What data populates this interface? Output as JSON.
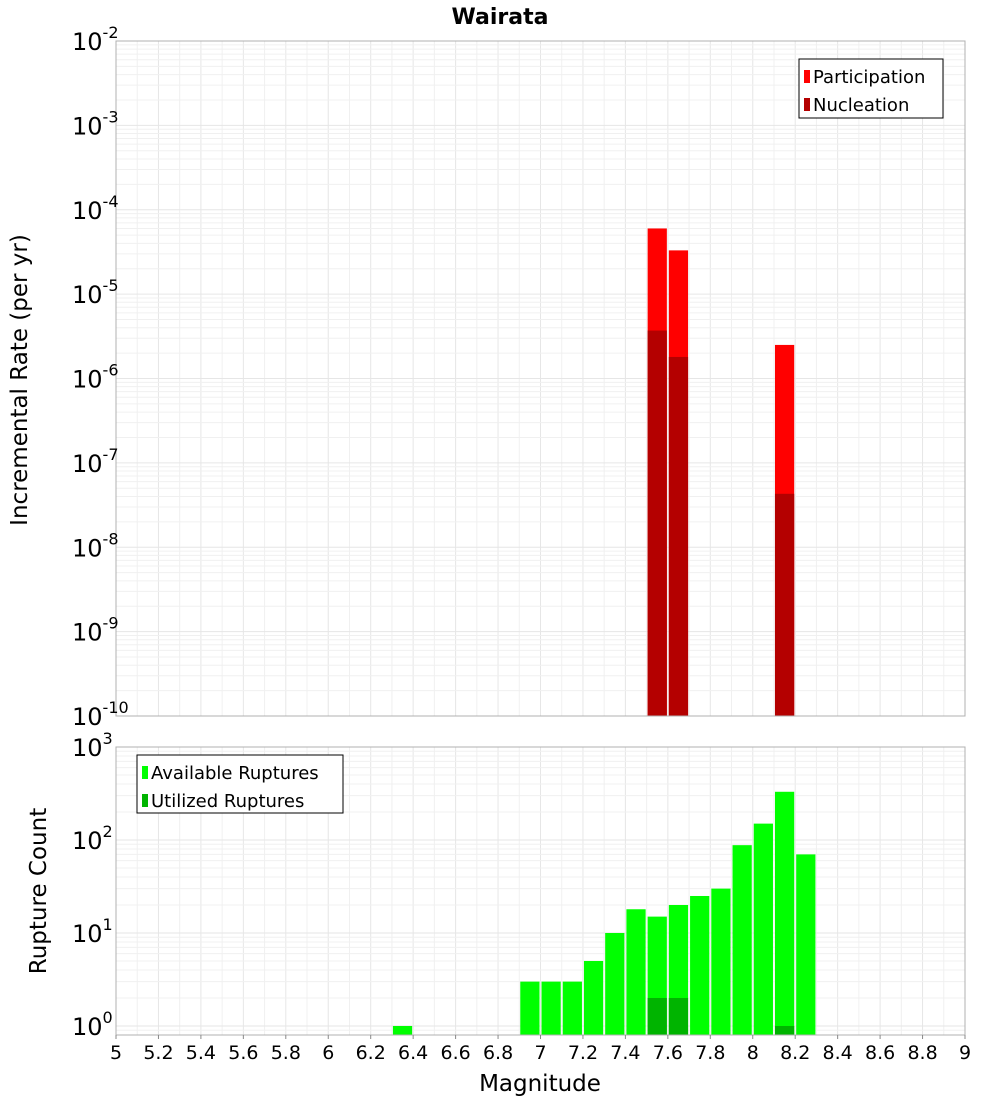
{
  "chart_data": [
    {
      "type": "bar",
      "title": "Wairata",
      "xlabel": "Magnitude",
      "ylabel": "Incremental Rate (per yr)",
      "yscale": "log",
      "xlim": [
        5,
        9
      ],
      "ylim": [
        1e-10,
        0.01
      ],
      "bin_width": 0.1,
      "legend_position": "top-right",
      "colors": {
        "Participation": "#ff0000",
        "Nucleation": "#b40000"
      },
      "series": [
        {
          "name": "Participation",
          "x": [
            7.55,
            7.65,
            8.15
          ],
          "values": [
            6e-05,
            3.3e-05,
            2.5e-06
          ]
        },
        {
          "name": "Nucleation",
          "x": [
            7.55,
            7.65,
            8.15
          ],
          "values": [
            3.7e-06,
            1.8e-06,
            4.3e-08
          ]
        }
      ],
      "y_tick_labels": [
        {
          "base": "10",
          "exp": "-10"
        },
        {
          "base": "10",
          "exp": "-9"
        },
        {
          "base": "10",
          "exp": "-8"
        },
        {
          "base": "10",
          "exp": "-7"
        },
        {
          "base": "10",
          "exp": "-6"
        },
        {
          "base": "10",
          "exp": "-5"
        },
        {
          "base": "10",
          "exp": "-4"
        },
        {
          "base": "10",
          "exp": "-3"
        },
        {
          "base": "10",
          "exp": "-2"
        }
      ]
    },
    {
      "type": "bar",
      "xlabel": "Magnitude",
      "ylabel": "Rupture Count",
      "yscale": "log",
      "xlim": [
        5,
        9
      ],
      "ylim": [
        0.8,
        1000
      ],
      "bin_width": 0.1,
      "legend_position": "top-left",
      "colors": {
        "Available Ruptures": "#00ff00",
        "Utilized Ruptures": "#00b400"
      },
      "series": [
        {
          "name": "Available Ruptures",
          "x": [
            6.35,
            6.95,
            7.05,
            7.15,
            7.25,
            7.35,
            7.45,
            7.55,
            7.65,
            7.75,
            7.85,
            7.95,
            8.05,
            8.15,
            8.25
          ],
          "values": [
            1,
            3,
            3,
            3,
            5,
            10,
            18,
            15,
            20,
            25,
            30,
            88,
            150,
            330,
            70
          ]
        },
        {
          "name": "Utilized Ruptures",
          "x": [
            7.55,
            7.65,
            8.15
          ],
          "values": [
            2,
            2,
            1
          ]
        }
      ],
      "y_tick_labels": [
        {
          "base": "10",
          "exp": "0"
        },
        {
          "base": "10",
          "exp": "1"
        },
        {
          "base": "10",
          "exp": "2"
        },
        {
          "base": "10",
          "exp": "3"
        }
      ]
    }
  ],
  "x_tick_labels": [
    "5",
    "5.2",
    "5.4",
    "5.6",
    "5.8",
    "6",
    "6.2",
    "6.4",
    "6.6",
    "6.8",
    "7",
    "7.2",
    "7.4",
    "7.6",
    "7.8",
    "8",
    "8.2",
    "8.4",
    "8.6",
    "8.8",
    "9"
  ]
}
